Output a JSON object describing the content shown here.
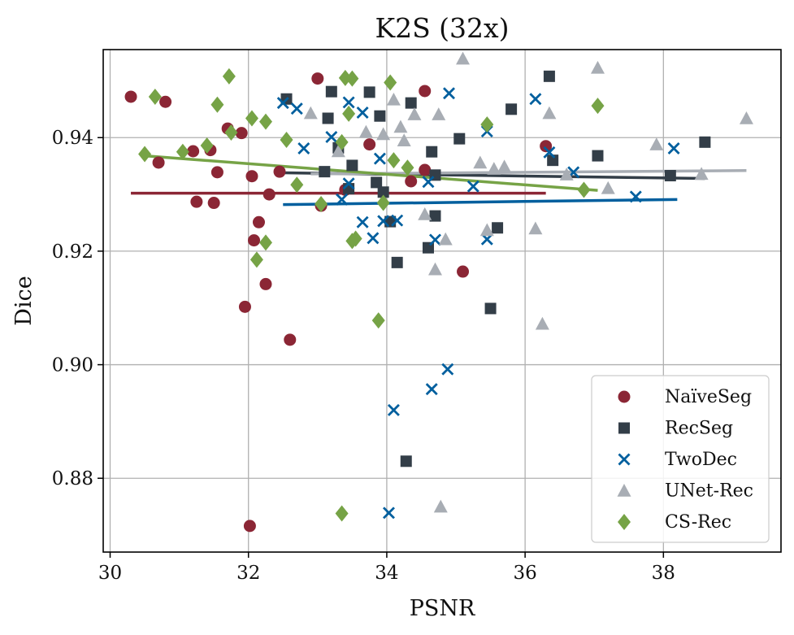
{
  "chart_data": {
    "type": "scatter",
    "title": "K2S (32x)",
    "xlabel": "PSNR",
    "ylabel": "Dice",
    "xlim": [
      29.9,
      39.7
    ],
    "ylim": [
      0.867,
      0.9555
    ],
    "xticks": [
      30,
      32,
      34,
      36,
      38
    ],
    "xtick_labels": [
      "30",
      "32",
      "34",
      "36",
      "38"
    ],
    "yticks": [
      0.88,
      0.9,
      0.92,
      0.94
    ],
    "ytick_labels": [
      "0.88",
      "0.90",
      "0.92",
      "0.94"
    ],
    "grid": true,
    "legend_position": "bottom-right",
    "series": [
      {
        "name": "NaïveSeg",
        "marker": "circle",
        "color": "#8b2635",
        "points": [
          [
            30.3,
            0.9472
          ],
          [
            30.8,
            0.9463
          ],
          [
            30.7,
            0.9356
          ],
          [
            31.2,
            0.9376
          ],
          [
            31.25,
            0.9287
          ],
          [
            31.45,
            0.9378
          ],
          [
            31.5,
            0.9285
          ],
          [
            31.55,
            0.9339
          ],
          [
            31.7,
            0.9416
          ],
          [
            31.9,
            0.9408
          ],
          [
            31.95,
            0.9102
          ],
          [
            32.05,
            0.9332
          ],
          [
            32.08,
            0.9219
          ],
          [
            32.15,
            0.9251
          ],
          [
            32.25,
            0.9142
          ],
          [
            32.3,
            0.93
          ],
          [
            32.45,
            0.934
          ],
          [
            32.6,
            0.9044
          ],
          [
            33.0,
            0.9504
          ],
          [
            33.05,
            0.928
          ],
          [
            33.4,
            0.9308
          ],
          [
            33.75,
            0.9388
          ],
          [
            34.35,
            0.9323
          ],
          [
            34.55,
            0.9482
          ],
          [
            34.55,
            0.9343
          ],
          [
            35.1,
            0.9164
          ],
          [
            36.3,
            0.9385
          ],
          [
            32.02,
            0.8716
          ]
        ],
        "fit": [
          [
            30.3,
            0.9302
          ],
          [
            36.3,
            0.9302
          ]
        ]
      },
      {
        "name": "RecSeg",
        "marker": "square",
        "color": "#333e48",
        "points": [
          [
            32.55,
            0.9468
          ],
          [
            33.15,
            0.9434
          ],
          [
            33.2,
            0.9481
          ],
          [
            33.3,
            0.9382
          ],
          [
            33.1,
            0.934
          ],
          [
            33.45,
            0.931
          ],
          [
            33.5,
            0.9351
          ],
          [
            33.75,
            0.948
          ],
          [
            33.9,
            0.9438
          ],
          [
            33.85,
            0.9321
          ],
          [
            33.95,
            0.9304
          ],
          [
            34.05,
            0.9252
          ],
          [
            34.15,
            0.918
          ],
          [
            34.35,
            0.9461
          ],
          [
            34.65,
            0.9375
          ],
          [
            34.7,
            0.9262
          ],
          [
            34.7,
            0.9334
          ],
          [
            34.6,
            0.9206
          ],
          [
            35.05,
            0.9398
          ],
          [
            35.6,
            0.9241
          ],
          [
            35.5,
            0.9099
          ],
          [
            35.8,
            0.945
          ],
          [
            36.35,
            0.9508
          ],
          [
            36.4,
            0.936
          ],
          [
            37.05,
            0.9368
          ],
          [
            38.1,
            0.9333
          ],
          [
            38.6,
            0.9392
          ],
          [
            34.28,
            0.883
          ]
        ],
        "fit": [
          [
            32.5,
            0.9338
          ],
          [
            38.6,
            0.9328
          ]
        ]
      },
      {
        "name": "TwoDec",
        "marker": "cross",
        "color": "#005f9e",
        "points": [
          [
            32.5,
            0.9461
          ],
          [
            32.7,
            0.9451
          ],
          [
            32.8,
            0.9381
          ],
          [
            33.2,
            0.9401
          ],
          [
            33.35,
            0.9291
          ],
          [
            33.45,
            0.9462
          ],
          [
            33.45,
            0.9319
          ],
          [
            33.65,
            0.9444
          ],
          [
            33.65,
            0.9251
          ],
          [
            33.8,
            0.9223
          ],
          [
            33.9,
            0.9363
          ],
          [
            33.95,
            0.9253
          ],
          [
            34.15,
            0.9254
          ],
          [
            34.6,
            0.9322
          ],
          [
            34.7,
            0.922
          ],
          [
            34.9,
            0.9478
          ],
          [
            35.25,
            0.9314
          ],
          [
            35.45,
            0.9411
          ],
          [
            35.45,
            0.9221
          ],
          [
            36.15,
            0.9468
          ],
          [
            36.35,
            0.9374
          ],
          [
            36.7,
            0.9339
          ],
          [
            37.6,
            0.9296
          ],
          [
            38.15,
            0.9381
          ],
          [
            34.1,
            0.892
          ],
          [
            34.65,
            0.8957
          ],
          [
            34.88,
            0.8992
          ],
          [
            34.03,
            0.8739
          ]
        ],
        "fit": [
          [
            32.5,
            0.9282
          ],
          [
            38.2,
            0.9291
          ]
        ]
      },
      {
        "name": "UNet-Rec",
        "marker": "triangle",
        "color": "#a8adb4",
        "points": [
          [
            32.9,
            0.9443
          ],
          [
            33.3,
            0.9376
          ],
          [
            33.7,
            0.941
          ],
          [
            33.95,
            0.9406
          ],
          [
            34.1,
            0.9467
          ],
          [
            34.2,
            0.9419
          ],
          [
            34.25,
            0.9395
          ],
          [
            34.4,
            0.9441
          ],
          [
            34.55,
            0.9265
          ],
          [
            34.7,
            0.9168
          ],
          [
            34.75,
            0.9441
          ],
          [
            34.85,
            0.9221
          ],
          [
            35.1,
            0.9539
          ],
          [
            35.35,
            0.9356
          ],
          [
            35.45,
            0.9237
          ],
          [
            35.55,
            0.9345
          ],
          [
            35.7,
            0.9349
          ],
          [
            36.15,
            0.924
          ],
          [
            36.25,
            0.9072
          ],
          [
            36.35,
            0.9443
          ],
          [
            36.6,
            0.9335
          ],
          [
            37.05,
            0.9523
          ],
          [
            37.2,
            0.9311
          ],
          [
            37.9,
            0.9388
          ],
          [
            38.55,
            0.9336
          ],
          [
            39.2,
            0.9434
          ],
          [
            34.78,
            0.875
          ]
        ],
        "fit": [
          [
            32.9,
            0.9336
          ],
          [
            39.2,
            0.9342
          ]
        ]
      },
      {
        "name": "CS-Rec",
        "marker": "diamond",
        "color": "#76a346",
        "points": [
          [
            30.5,
            0.9371
          ],
          [
            30.65,
            0.9472
          ],
          [
            31.05,
            0.9375
          ],
          [
            31.4,
            0.9386
          ],
          [
            31.55,
            0.9458
          ],
          [
            31.72,
            0.9508
          ],
          [
            31.75,
            0.9409
          ],
          [
            32.05,
            0.9434
          ],
          [
            32.12,
            0.9185
          ],
          [
            32.25,
            0.9428
          ],
          [
            32.25,
            0.9215
          ],
          [
            32.55,
            0.9396
          ],
          [
            32.7,
            0.9317
          ],
          [
            33.05,
            0.9283
          ],
          [
            33.4,
            0.9505
          ],
          [
            33.35,
            0.9392
          ],
          [
            33.45,
            0.9442
          ],
          [
            33.5,
            0.9504
          ],
          [
            33.5,
            0.9218
          ],
          [
            33.55,
            0.9222
          ],
          [
            33.88,
            0.9078
          ],
          [
            33.95,
            0.9285
          ],
          [
            34.05,
            0.9497
          ],
          [
            34.1,
            0.936
          ],
          [
            34.3,
            0.9347
          ],
          [
            35.45,
            0.9423
          ],
          [
            36.85,
            0.9308
          ],
          [
            37.05,
            0.9456
          ],
          [
            33.35,
            0.8738
          ]
        ],
        "fit": [
          [
            30.5,
            0.9368
          ],
          [
            37.05,
            0.9307
          ]
        ]
      }
    ]
  }
}
